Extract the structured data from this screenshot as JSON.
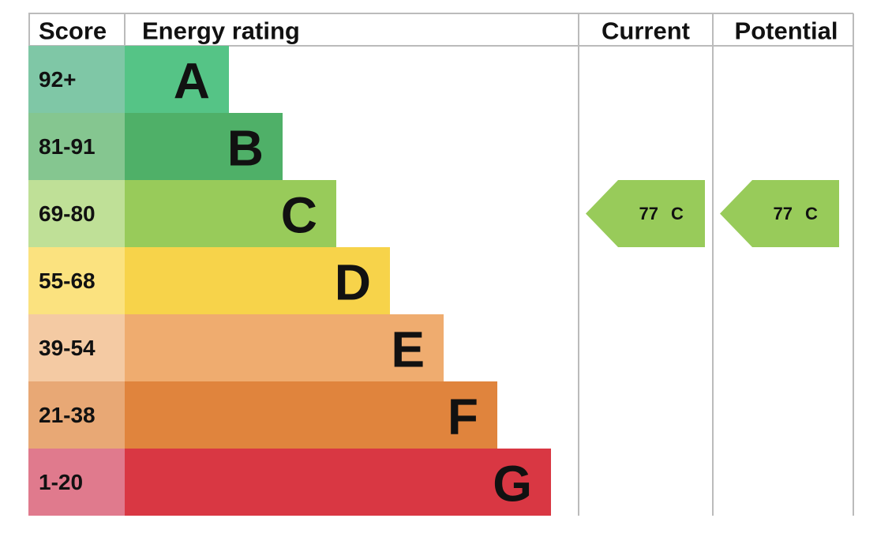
{
  "header": {
    "score": "Score",
    "energy_rating": "Energy rating",
    "current": "Current",
    "potential": "Potential"
  },
  "bands": [
    {
      "score": "92+",
      "rating": "A",
      "color": "#55c486",
      "score_color": "#7fc7a6"
    },
    {
      "score": "81-91",
      "rating": "B",
      "color": "#4fb068",
      "score_color": "#85c690"
    },
    {
      "score": "69-80",
      "rating": "C",
      "color": "#98cb5a",
      "score_color": "#bfe097"
    },
    {
      "score": "55-68",
      "rating": "D",
      "color": "#f7d34a",
      "score_color": "#fbe27f"
    },
    {
      "score": "39-54",
      "rating": "E",
      "color": "#efac6f",
      "score_color": "#f4caa3"
    },
    {
      "score": "21-38",
      "rating": "F",
      "color": "#e0843d",
      "score_color": "#e8a875"
    },
    {
      "score": "1-20",
      "rating": "G",
      "color": "#d93743",
      "score_color": "#e07a8d"
    }
  ],
  "current": {
    "score": 77,
    "rating": "C"
  },
  "potential": {
    "score": 77,
    "rating": "C"
  }
}
